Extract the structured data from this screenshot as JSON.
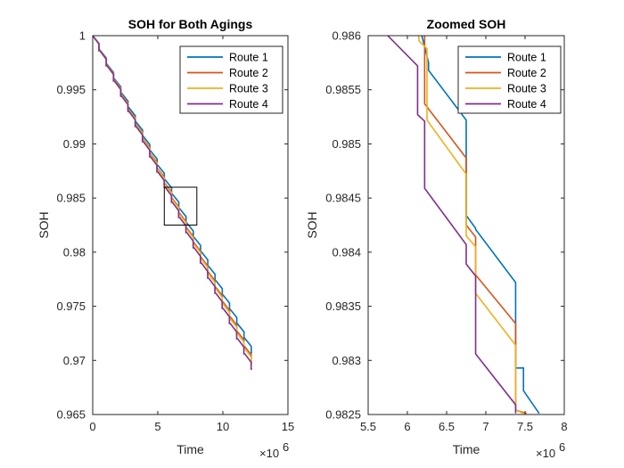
{
  "chart_data": [
    {
      "type": "line",
      "title": "SOH for Both Agings",
      "xlabel": "Time",
      "ylabel": "SOH",
      "x_exponent_label": "×10",
      "x_exponent": "6",
      "xlim": [
        0,
        15
      ],
      "ylim": [
        0.965,
        1
      ],
      "xticks": [
        "0",
        "5",
        "10",
        "15"
      ],
      "yticks": [
        "0.965",
        "0.97",
        "0.975",
        "0.98",
        "0.985",
        "0.99",
        "0.995",
        "1"
      ],
      "grid": false,
      "legend_position": "top-right",
      "zoom_box": {
        "x": [
          5.5,
          8.0
        ],
        "y": [
          0.9825,
          0.986
        ]
      },
      "series": [
        {
          "name": "Route 1",
          "color": "#0072BD",
          "steps": 22,
          "x_start": 0,
          "x_end": 12.25,
          "y_start": 1,
          "y_end": 0.9707
        },
        {
          "name": "Route 2",
          "color": "#D95319",
          "steps": 22,
          "x_start": 0,
          "x_end": 12.25,
          "y_start": 1,
          "y_end": 0.9699
        },
        {
          "name": "Route 3",
          "color": "#EDB120",
          "steps": 22,
          "x_start": 0,
          "x_end": 12.25,
          "y_start": 1,
          "y_end": 0.9697
        },
        {
          "name": "Route 4",
          "color": "#7E2F8E",
          "steps": 22,
          "x_start": 0,
          "x_end": 12.25,
          "y_start": 1,
          "y_end": 0.9692
        }
      ]
    },
    {
      "type": "line",
      "title": "Zoomed SOH",
      "xlabel": "Time",
      "ylabel": "SOH",
      "x_exponent_label": "×10",
      "x_exponent": "6",
      "xlim": [
        5.5,
        8
      ],
      "ylim": [
        0.9825,
        0.986
      ],
      "xticks": [
        "5.5",
        "6",
        "6.5",
        "7",
        "7.5",
        "8"
      ],
      "yticks": [
        "0.9825",
        "0.983",
        "0.9835",
        "0.984",
        "0.9845",
        "0.985",
        "0.9855",
        "0.986"
      ],
      "grid": false,
      "legend_position": "top-right",
      "series": [
        {
          "name": "Route 1",
          "color": "#0072BD",
          "points": [
            [
              6.15,
              0.9861
            ],
            [
              6.27,
              0.98575
            ],
            [
              6.27,
              0.98568
            ],
            [
              6.75,
              0.98522
            ],
            [
              6.75,
              0.98434
            ],
            [
              6.87,
              0.98422
            ],
            [
              6.87,
              0.98421
            ],
            [
              7.38,
              0.98372
            ],
            [
              7.38,
              0.98293
            ],
            [
              7.48,
              0.98293
            ],
            [
              7.48,
              0.98272
            ],
            [
              7.68,
              0.98251
            ]
          ]
        },
        {
          "name": "Route 2",
          "color": "#D95319",
          "points": [
            [
              6.15,
              0.9861
            ],
            [
              6.22,
              0.98604
            ],
            [
              6.22,
              0.98537
            ],
            [
              6.75,
              0.98487
            ],
            [
              6.75,
              0.98425
            ],
            [
              6.87,
              0.98414
            ],
            [
              6.87,
              0.98379
            ],
            [
              7.38,
              0.98334
            ],
            [
              7.38,
              0.98254
            ],
            [
              7.52,
              0.98251
            ]
          ]
        },
        {
          "name": "Route 3",
          "color": "#EDB120",
          "points": [
            [
              6.13,
              0.9861
            ],
            [
              6.15,
              0.98595
            ],
            [
              6.25,
              0.98588
            ],
            [
              6.25,
              0.98522
            ],
            [
              6.75,
              0.98472
            ],
            [
              6.75,
              0.98415
            ],
            [
              6.87,
              0.98405
            ],
            [
              6.87,
              0.98362
            ],
            [
              7.38,
              0.98314
            ],
            [
              7.38,
              0.98254
            ],
            [
              7.48,
              0.98251
            ]
          ]
        },
        {
          "name": "Route 4",
          "color": "#7E2F8E",
          "points": [
            [
              5.75,
              0.986
            ],
            [
              6.13,
              0.98572
            ],
            [
              6.13,
              0.98527
            ],
            [
              6.22,
              0.98521
            ],
            [
              6.22,
              0.98459
            ],
            [
              6.75,
              0.98407
            ],
            [
              6.75,
              0.98389
            ],
            [
              6.87,
              0.98378
            ],
            [
              6.87,
              0.98306
            ],
            [
              7.38,
              0.98259
            ],
            [
              7.38,
              0.98251
            ]
          ]
        }
      ]
    }
  ]
}
